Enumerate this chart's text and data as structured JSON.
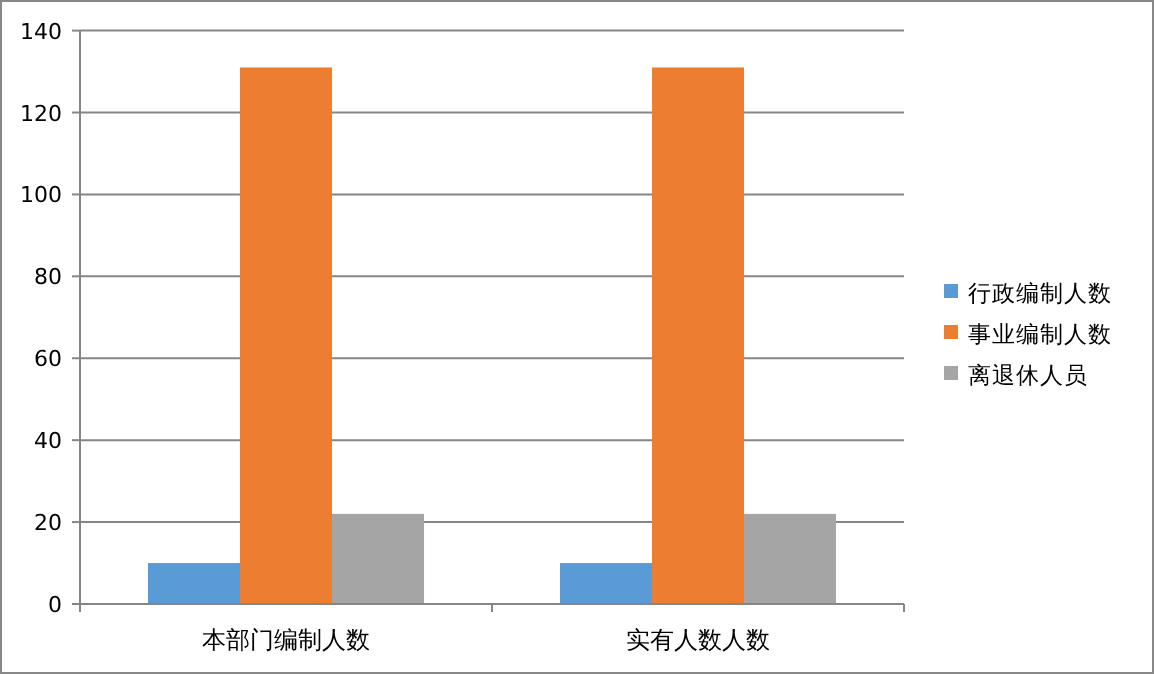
{
  "chart_data": {
    "type": "bar",
    "categories": [
      "本部门编制人数",
      "实有人数人数"
    ],
    "series": [
      {
        "name": "行政编制人数",
        "color": "#5b9bd5",
        "values": [
          10,
          10
        ]
      },
      {
        "name": "事业编制人数",
        "color": "#ed7d31",
        "values": [
          131,
          131
        ]
      },
      {
        "name": "离退休人员",
        "color": "#a5a5a5",
        "values": [
          22,
          22
        ]
      }
    ],
    "ylim": [
      0,
      140
    ],
    "yticks": [
      0,
      20,
      40,
      60,
      80,
      100,
      120,
      140
    ],
    "grid": "y",
    "legend": "right"
  }
}
